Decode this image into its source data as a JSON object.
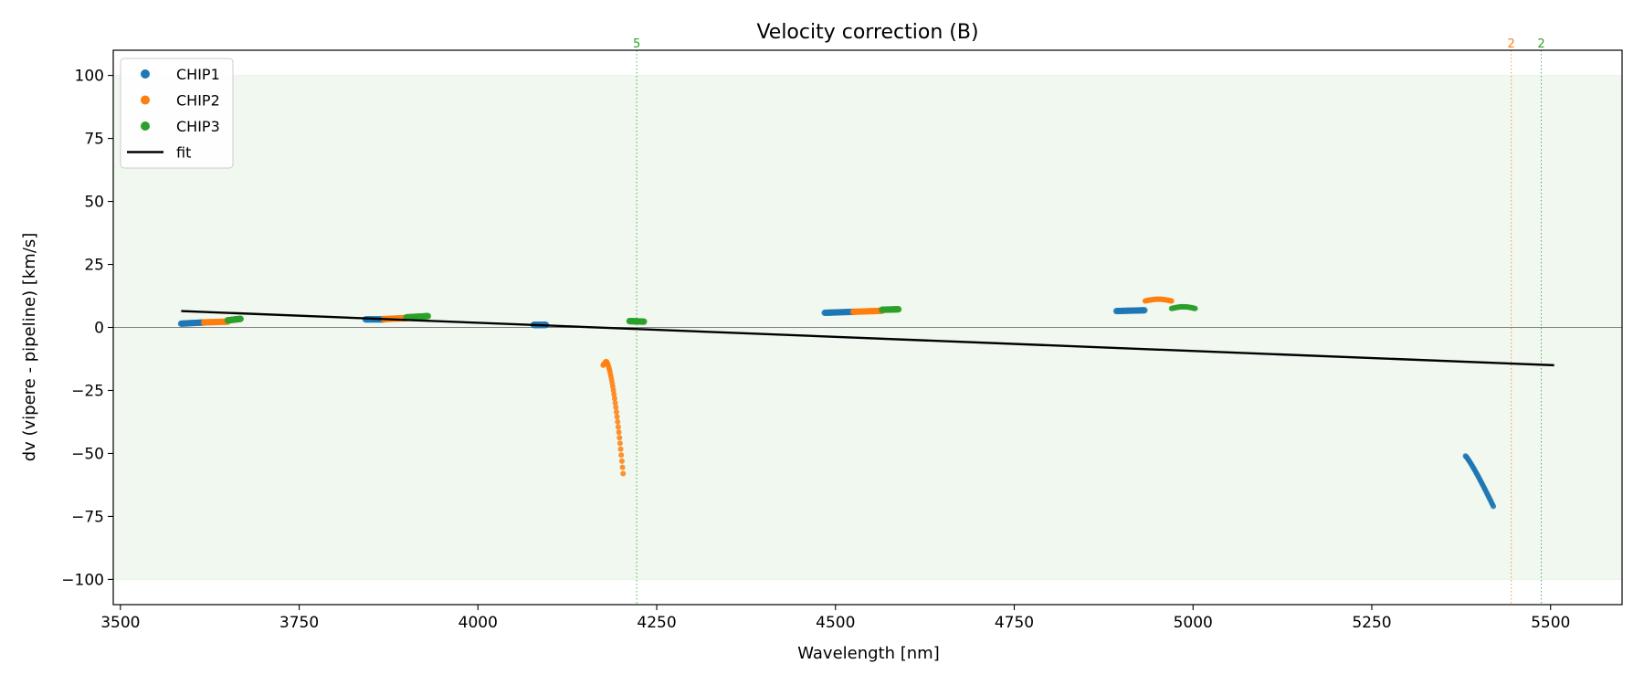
{
  "chart_data": {
    "type": "scatter",
    "title": "Velocity correction (B)",
    "xlabel": "Wavelength [nm]",
    "ylabel": "dv (vipere - pipeline) [km/s]",
    "xlim": [
      3490,
      5600
    ],
    "ylim": [
      -110,
      110
    ],
    "xticks": [
      3500,
      3750,
      4000,
      4250,
      4500,
      4750,
      5000,
      5250,
      5500
    ],
    "yticks": [
      -100,
      -75,
      -50,
      -25,
      0,
      25,
      50,
      75,
      100
    ],
    "shaded_band": [
      -100,
      100
    ],
    "zero_line": 0,
    "series": [
      {
        "name": "CHIP1",
        "color": "#1f77b4",
        "segments": [
          {
            "x0": 3585,
            "x1": 3618,
            "y0": 1.5,
            "y1": 2.0,
            "shape": "flat"
          },
          {
            "x0": 3843,
            "x1": 3868,
            "y0": 3.2,
            "y1": 3.2,
            "shape": "flat"
          },
          {
            "x0": 4078,
            "x1": 4095,
            "y0": 1.0,
            "y1": 1.0,
            "shape": "flat"
          },
          {
            "x0": 4485,
            "x1": 4525,
            "y0": 5.8,
            "y1": 6.2,
            "shape": "flat"
          },
          {
            "x0": 4893,
            "x1": 4932,
            "y0": 6.5,
            "y1": 6.8,
            "shape": "flat"
          },
          {
            "x0": 5381,
            "x1": 5420,
            "y0": -51,
            "y1": -71,
            "shape": "curve"
          }
        ]
      },
      {
        "name": "CHIP2",
        "color": "#ff7f0e",
        "segments": [
          {
            "x0": 3617,
            "x1": 3650,
            "y0": 2.0,
            "y1": 2.3,
            "shape": "flat"
          },
          {
            "x0": 3868,
            "x1": 3900,
            "y0": 3.3,
            "y1": 3.7,
            "shape": "flat"
          },
          {
            "x0": 4175,
            "x1": 4203,
            "y0": -15,
            "y1": -58,
            "shape": "hook"
          },
          {
            "x0": 4525,
            "x1": 4565,
            "y0": 6.2,
            "y1": 6.6,
            "shape": "flat"
          },
          {
            "x0": 4933,
            "x1": 4970,
            "y0": 10.5,
            "y1": 11.2,
            "shape": "arc"
          }
        ]
      },
      {
        "name": "CHIP3",
        "color": "#2ca02c",
        "segments": [
          {
            "x0": 3650,
            "x1": 3668,
            "y0": 2.8,
            "y1": 3.4,
            "shape": "flat"
          },
          {
            "x0": 3900,
            "x1": 3930,
            "y0": 4.0,
            "y1": 4.5,
            "shape": "flat"
          },
          {
            "x0": 4212,
            "x1": 4232,
            "y0": 2.5,
            "y1": 2.3,
            "shape": "flat"
          },
          {
            "x0": 4565,
            "x1": 4588,
            "y0": 7.0,
            "y1": 7.2,
            "shape": "flat"
          },
          {
            "x0": 4970,
            "x1": 5003,
            "y0": 7.5,
            "y1": 8.2,
            "shape": "arc"
          }
        ]
      }
    ],
    "fit": {
      "name": "fit",
      "color": "#000000",
      "x": [
        3585,
        5505
      ],
      "y": [
        6.5,
        -15
      ]
    },
    "outlier_markers": [
      {
        "x": 4222,
        "label": "5",
        "color": "#2ca02c"
      },
      {
        "x": 5445,
        "label": "2",
        "color": "#ff7f0e"
      },
      {
        "x": 5487,
        "label": "2",
        "color": "#2ca02c"
      }
    ],
    "legend_position": "top-left"
  }
}
